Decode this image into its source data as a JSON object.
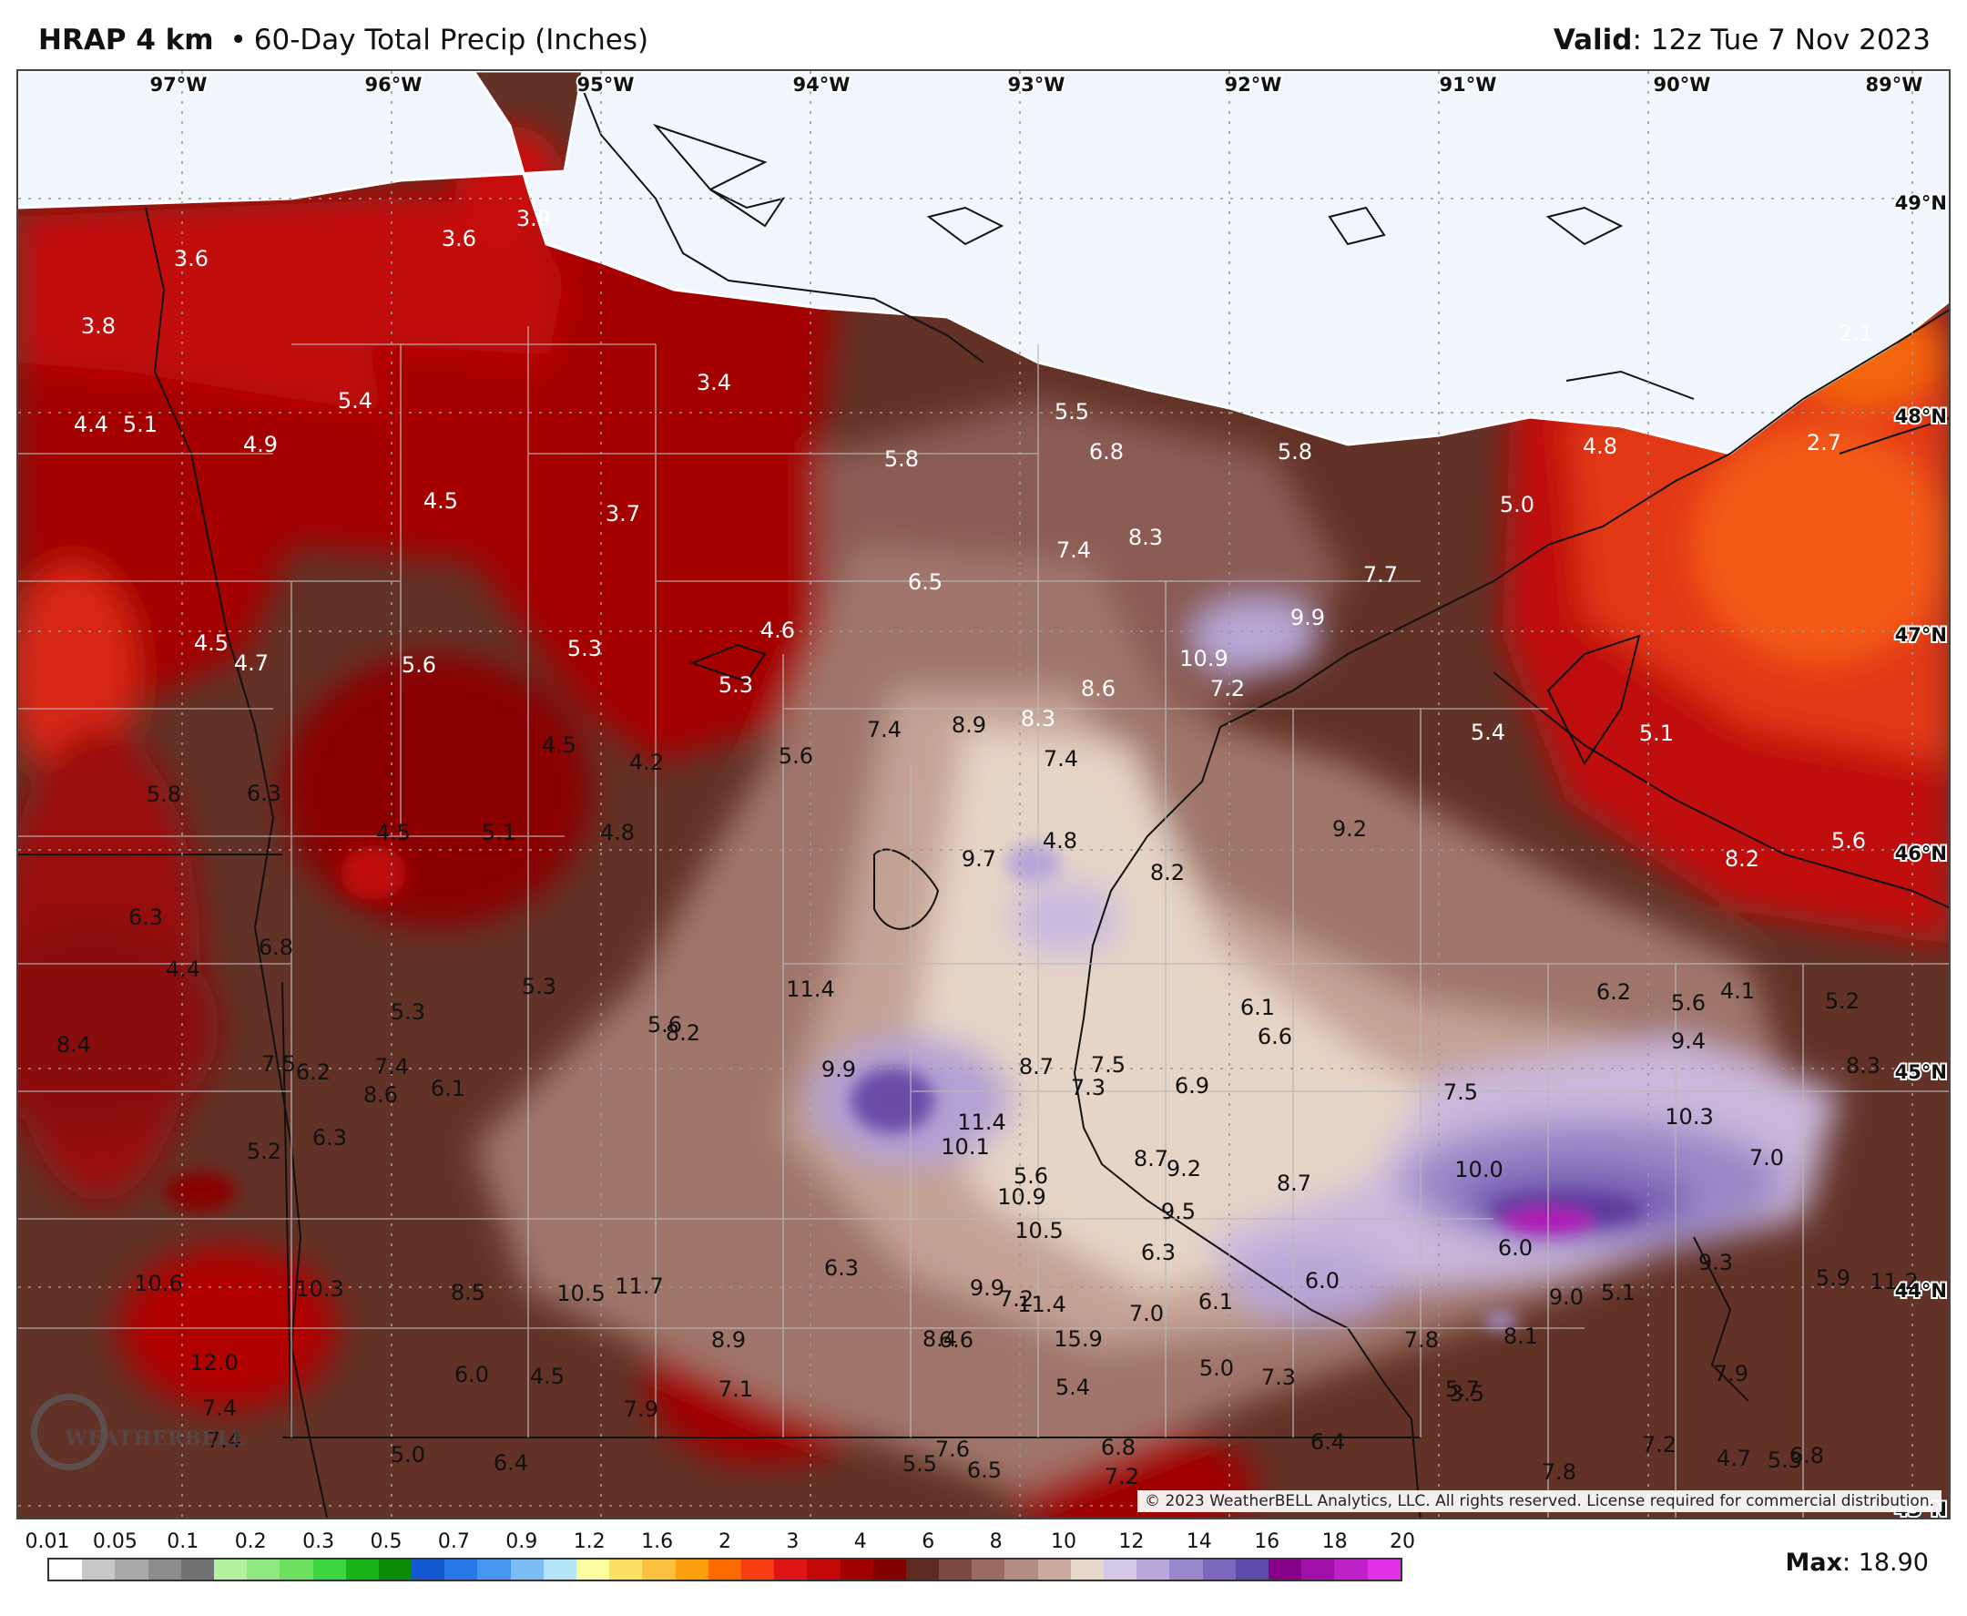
{
  "header": {
    "model": "HRAP 4 km",
    "bullet": "•",
    "product": "60-Day Total Precip (Inches)",
    "valid_label": "Valid",
    "valid_value": ": 12z Tue 7 Nov 2023"
  },
  "map": {
    "lon_labels": [
      "97°W",
      "96°W",
      "95°W",
      "94°W",
      "93°W",
      "92°W",
      "91°W",
      "90°W",
      "89°W"
    ],
    "lat_labels": [
      "49°N",
      "48°N",
      "47°N",
      "46°N",
      "45°N",
      "44°N",
      "43°N"
    ],
    "values": [
      "3.6",
      "3.6",
      "3.9",
      "3.8",
      "4.4",
      "5.1",
      "4.9",
      "5.4",
      "4.5",
      "3.4",
      "3.7",
      "5.5",
      "6.8",
      "5.8",
      "5.8",
      "4.8",
      "2.1",
      "2.7",
      "5.0",
      "7.4",
      "8.3",
      "6.5",
      "7.7",
      "9.9",
      "10.9",
      "4.5",
      "4.7",
      "5.6",
      "5.3",
      "4.6",
      "5.3",
      "8.6",
      "7.2",
      "5.4",
      "5.1",
      "4.5",
      "4.2",
      "5.6",
      "7.4",
      "8.9",
      "8.3",
      "7.4",
      "5.8",
      "6.3",
      "4.5",
      "5.1",
      "4.8",
      "4.8",
      "9.7",
      "8.2",
      "9.2",
      "8.2",
      "5.6",
      "4.1",
      "5.6",
      "5.2",
      "6.3",
      "6.8",
      "4.4",
      "5.3",
      "11.4",
      "6.2",
      "6.1",
      "6.6",
      "6.9",
      "7.5",
      "10.3",
      "9.4",
      "8.4",
      "7.5",
      "7.4",
      "6.2",
      "5.3",
      "5.6",
      "6.1",
      "8.2",
      "7.5",
      "8.7",
      "7.3",
      "8.3",
      "5.2",
      "8.6",
      "6.3",
      "9.9",
      "11.4",
      "10.1",
      "9.2",
      "8.7",
      "5.6",
      "6.3",
      "8.7",
      "10.0",
      "7.0",
      "10.9",
      "10.5",
      "9.5",
      "9.0",
      "9.3",
      "11.2",
      "6.3",
      "6.0",
      "6.0",
      "7.2",
      "9.9",
      "10.6",
      "10.3",
      "8.5",
      "11.7",
      "11.4",
      "7.0",
      "6.1",
      "8.1",
      "5.1",
      "5.9",
      "7.8",
      "8.4",
      "15.9",
      "10.5",
      "8.9",
      "6.6",
      "12.0",
      "6.0",
      "4.5",
      "5.0",
      "7.1",
      "5.7",
      "7.4",
      "7.4",
      "7.9",
      "7.9",
      "7.6",
      "6.8",
      "5.4",
      "7.3",
      "3.5",
      "5.0",
      "6.4",
      "6.4",
      "5.5",
      "6.5",
      "7.8",
      "7.2",
      "7.2",
      "5.3",
      "4.7",
      "6.8",
      "7.3",
      "7.2",
      "5.3",
      "5.5",
      "7.0",
      "6.4",
      "5.6",
      "4.4",
      "7.6",
      "6.6",
      "6.9"
    ],
    "copyright": "© 2023 WeatherBELL Analytics, LLC. All rights reserved. License required for commercial distribution.",
    "logo_text": "WEATHERBELL"
  },
  "legend": {
    "labels": [
      "0.01",
      "0.05",
      "0.1",
      "0.2",
      "0.3",
      "0.5",
      "0.7",
      "0.9",
      "1.2",
      "1.6",
      "2",
      "3",
      "4",
      "6",
      "8",
      "10",
      "12",
      "14",
      "16",
      "18",
      "20"
    ],
    "colors": [
      "#ffffff",
      "#c8c8c8",
      "#a8a8a8",
      "#8c8c8c",
      "#727272",
      "#b4f2a0",
      "#90e882",
      "#6ee060",
      "#3ed640",
      "#16b416",
      "#088c08",
      "#1458d0",
      "#2878e8",
      "#4496f0",
      "#7cbcf4",
      "#b4e4f8",
      "#fcfca0",
      "#fce064",
      "#fcc040",
      "#fca010",
      "#fc6a00",
      "#f43c10",
      "#e01414",
      "#c40808",
      "#a00000",
      "#820000",
      "#5e2a22",
      "#7c4a40",
      "#9a6c60",
      "#b48e82",
      "#ccaca0",
      "#e8d8cc",
      "#d4c8e8",
      "#b8a8dc",
      "#9a88cc",
      "#7c68bc",
      "#5e4aa8",
      "#880088",
      "#a010a8",
      "#c020c8",
      "#e030e8"
    ],
    "max_label": "Max",
    "max_value": ": 18.90"
  }
}
